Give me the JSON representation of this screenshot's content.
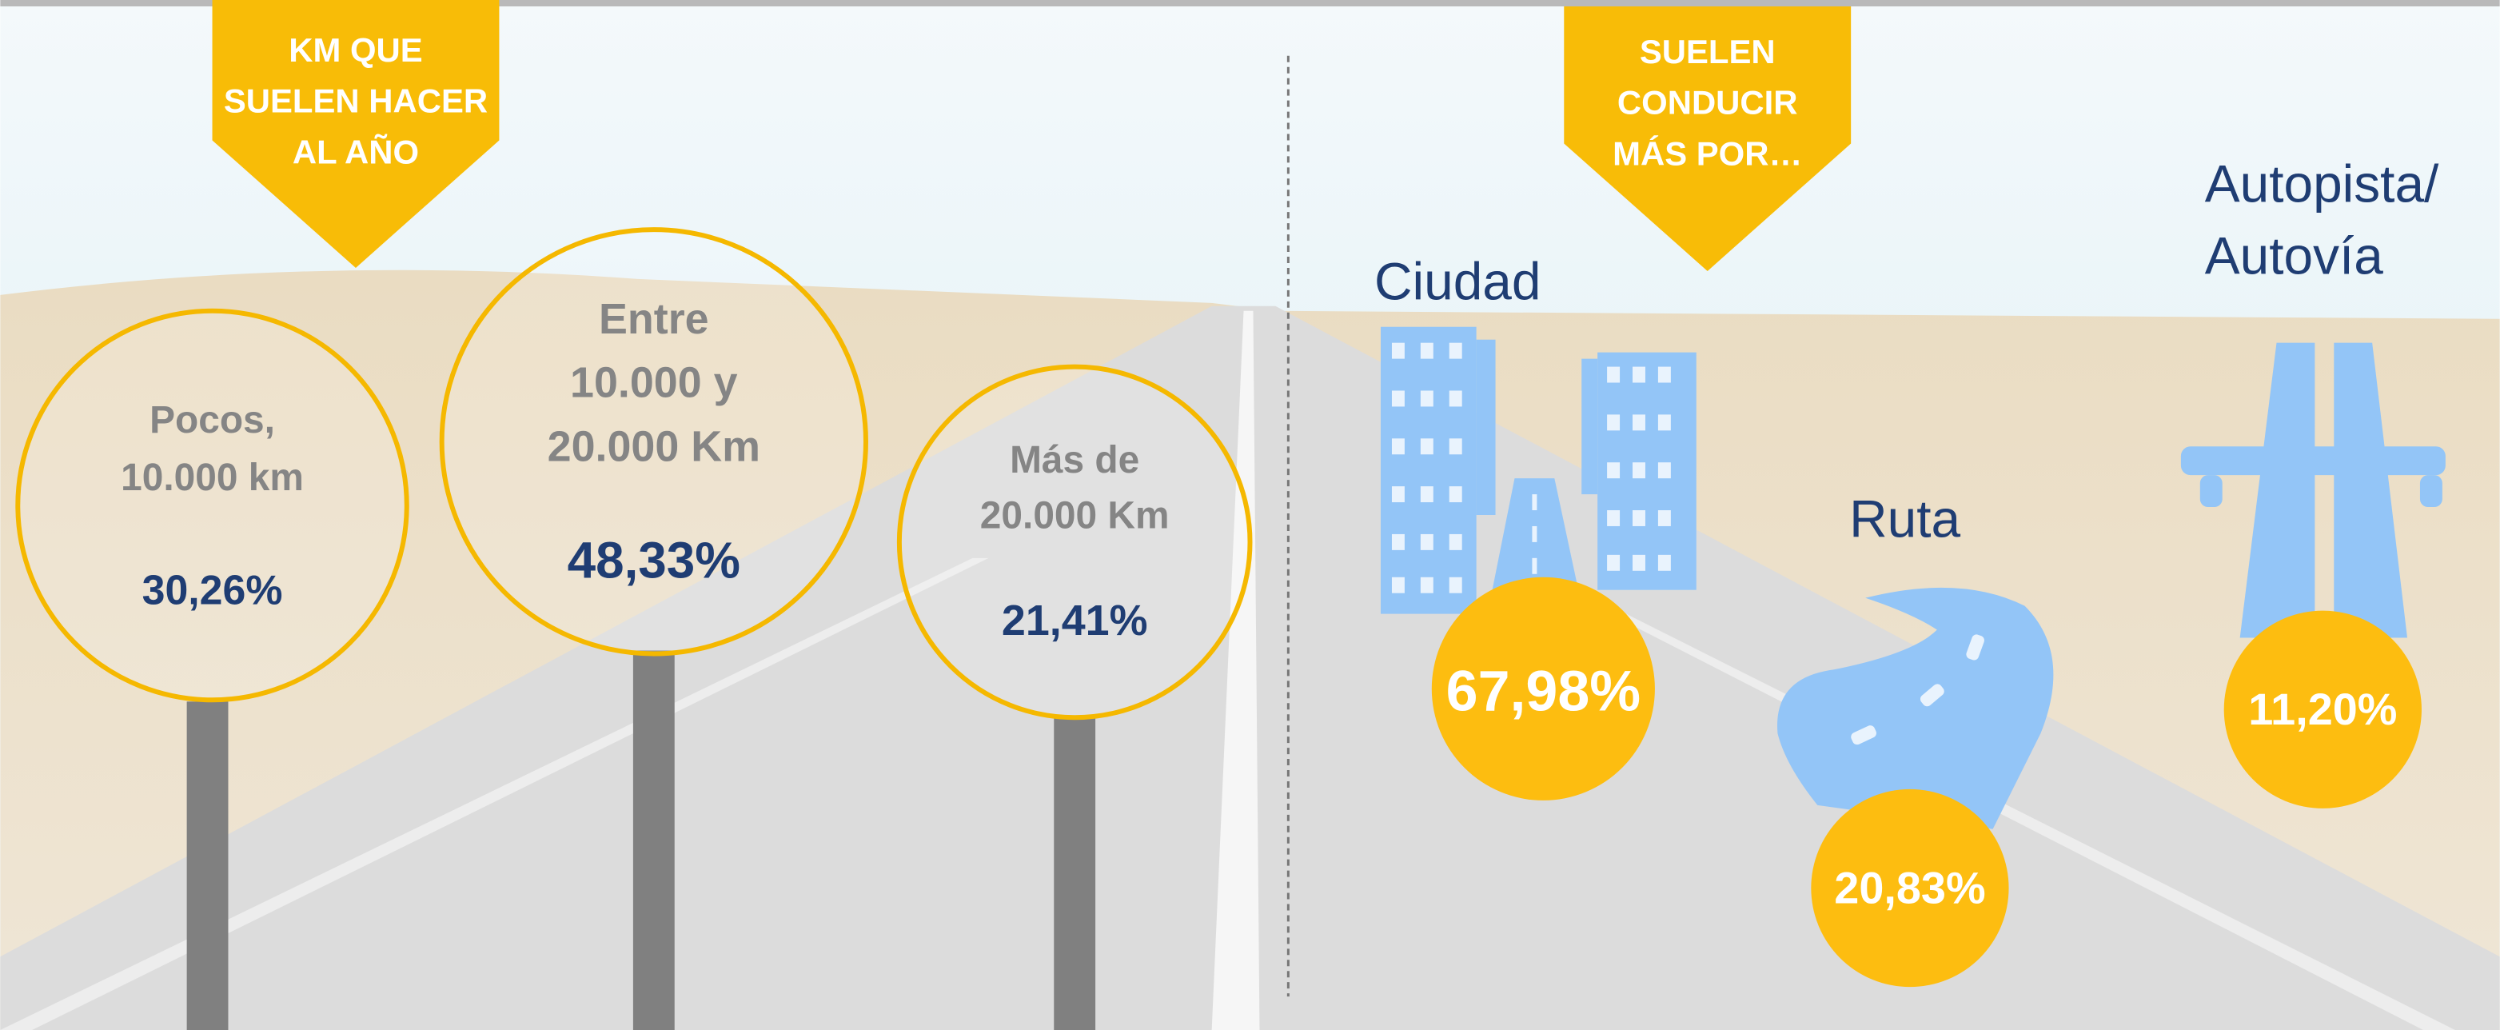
{
  "left_panel": {
    "banner": [
      "KM QUE",
      "SUELEN HACER",
      "AL AÑO"
    ],
    "signs": [
      {
        "label": [
          "Pocos,",
          "10.000 km"
        ],
        "percent": "30,26%"
      },
      {
        "label": [
          "Entre",
          "10.000 y",
          "20.000 Km"
        ],
        "percent": "48,33%"
      },
      {
        "label": [
          "Más de",
          "20.000 Km"
        ],
        "percent": "21,41%"
      }
    ]
  },
  "right_panel": {
    "banner": [
      "SUELEN",
      "CONDUCIR",
      "MÁS POR…"
    ],
    "roads": [
      {
        "label": [
          "Ciudad"
        ],
        "percent": "67,98%"
      },
      {
        "label": [
          "Ruta"
        ],
        "percent": "20,83%"
      },
      {
        "label": [
          "Autopista/",
          "Autovía"
        ],
        "percent": "11,20%"
      }
    ]
  }
}
